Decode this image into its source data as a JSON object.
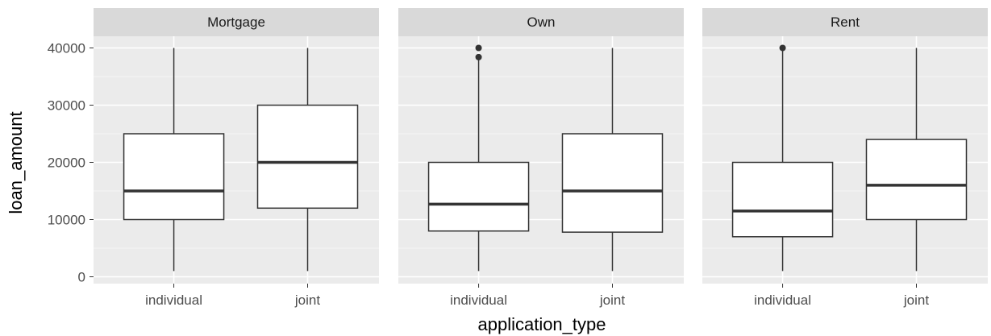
{
  "chart_data": {
    "type": "boxplot",
    "xlabel": "application_type",
    "ylabel": "loan_amount",
    "ylim": [
      0,
      40000
    ],
    "yticks": [
      "0",
      "10000",
      "20000",
      "30000",
      "40000"
    ],
    "ytick_values": [
      0,
      10000,
      20000,
      30000,
      40000
    ],
    "categories": [
      "individual",
      "joint"
    ],
    "grid": true,
    "colors": {
      "panel_bg": "#ebebeb",
      "strip_bg": "#d9d9d9",
      "grid_major": "#ffffff",
      "grid_minor": "#f5f5f5",
      "box_fill": "#ffffff",
      "box_line": "#333333"
    },
    "facets": [
      {
        "name": "Mortgage",
        "boxes": [
          {
            "category": "individual",
            "min": 1000,
            "q1": 10000,
            "median": 15000,
            "q3": 25000,
            "max": 40000,
            "outliers": []
          },
          {
            "category": "joint",
            "min": 1000,
            "q1": 12000,
            "median": 20000,
            "q3": 30000,
            "max": 40000,
            "outliers": []
          }
        ]
      },
      {
        "name": "Own",
        "boxes": [
          {
            "category": "individual",
            "min": 1000,
            "q1": 8000,
            "median": 12700,
            "q3": 20000,
            "max": 38000,
            "outliers": [
              38400,
              40000
            ]
          },
          {
            "category": "joint",
            "min": 1000,
            "q1": 7800,
            "median": 15000,
            "q3": 25000,
            "max": 40000,
            "outliers": []
          }
        ]
      },
      {
        "name": "Rent",
        "boxes": [
          {
            "category": "individual",
            "min": 1000,
            "q1": 7000,
            "median": 11500,
            "q3": 20000,
            "max": 39500,
            "outliers": [
              40000
            ]
          },
          {
            "category": "joint",
            "min": 1000,
            "q1": 10000,
            "median": 16000,
            "q3": 24000,
            "max": 40000,
            "outliers": []
          }
        ]
      }
    ]
  }
}
